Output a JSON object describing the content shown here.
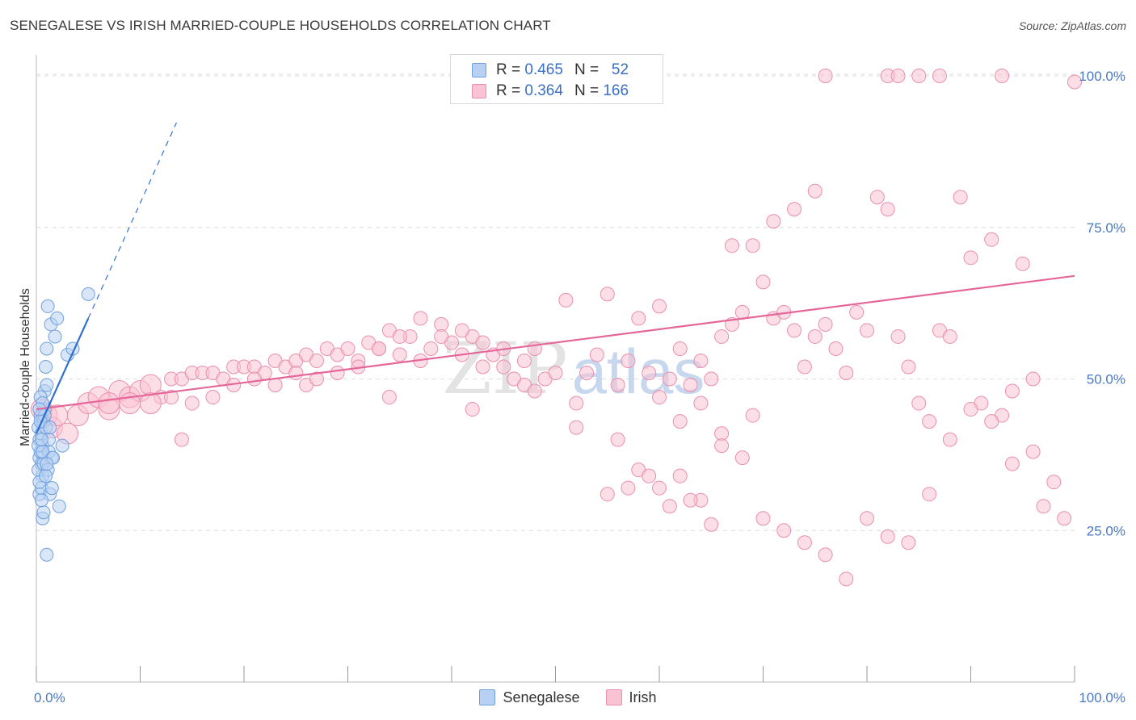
{
  "title": "SENEGALESE VS IRISH MARRIED-COUPLE HOUSEHOLDS CORRELATION CHART",
  "source": "Source: ZipAtlas.com",
  "watermark": {
    "zip": "ZIP",
    "atlas": "atlas"
  },
  "colors": {
    "senegalese_fill": "#b8d1f3",
    "senegalese_stroke": "#6f9fde",
    "senegalese_line": "#2f6fcf",
    "irish_fill": "#f9c3d4",
    "irish_stroke": "#ea8fae",
    "irish_line": "#e5679a",
    "tick_text": "#4a78c2",
    "grid": "#dcdcdc"
  },
  "legend_top": {
    "rows": [
      {
        "series": "Senegalese",
        "r_label": "R =",
        "r_value": "0.465",
        "n_label": "N =",
        "n_value": "52"
      },
      {
        "series": "Irish",
        "r_label": "R =",
        "r_value": "0.364",
        "n_label": "N =",
        "n_value": "166"
      }
    ]
  },
  "legend_bottom": [
    "Senegalese",
    "Irish"
  ],
  "chart_data": {
    "type": "scatter",
    "title": "SENEGALESE VS IRISH MARRIED-COUPLE HOUSEHOLDS CORRELATION CHART",
    "xlabel": "",
    "ylabel": "Married-couple Households",
    "xlim": [
      0,
      100
    ],
    "ylim": [
      0,
      102
    ],
    "x_tick_labels": [
      "0.0%",
      "100.0%"
    ],
    "y_ticks": [
      25,
      50,
      75,
      100
    ],
    "y_tick_labels": [
      "25.0%",
      "50.0%",
      "75.0%",
      "100.0%"
    ],
    "grid": "horizontal dashed",
    "legend": "top-center and bottom",
    "series": [
      {
        "name": "Senegalese",
        "r": 0.465,
        "n": 52,
        "trend": {
          "x0": 0,
          "y0": 41,
          "x1": 5,
          "y1": 60,
          "dashed_to_x": 13.5
        },
        "points": [
          [
            0.2,
            42
          ],
          [
            0.3,
            40
          ],
          [
            0.3,
            37
          ],
          [
            0.4,
            44
          ],
          [
            0.4,
            38
          ],
          [
            0.5,
            36
          ],
          [
            0.5,
            41
          ],
          [
            0.6,
            39
          ],
          [
            0.6,
            34
          ],
          [
            0.7,
            43
          ],
          [
            0.2,
            35
          ],
          [
            0.3,
            31
          ],
          [
            0.5,
            32
          ],
          [
            0.6,
            27
          ],
          [
            0.7,
            28
          ],
          [
            0.8,
            48
          ],
          [
            0.8,
            45
          ],
          [
            0.9,
            52
          ],
          [
            1.0,
            49
          ],
          [
            1.0,
            55
          ],
          [
            1.1,
            62
          ],
          [
            1.2,
            38
          ],
          [
            1.3,
            31
          ],
          [
            1.4,
            59
          ],
          [
            1.5,
            32
          ],
          [
            1.5,
            37
          ],
          [
            1.8,
            57
          ],
          [
            2.0,
            60
          ],
          [
            2.2,
            29
          ],
          [
            2.5,
            39
          ],
          [
            3.0,
            54
          ],
          [
            3.5,
            55
          ],
          [
            5.0,
            64
          ],
          [
            1.0,
            21
          ],
          [
            0.4,
            47
          ],
          [
            0.6,
            46
          ],
          [
            0.9,
            42
          ],
          [
            1.2,
            40
          ],
          [
            0.3,
            33
          ],
          [
            0.7,
            36
          ],
          [
            0.5,
            30
          ],
          [
            0.8,
            44
          ],
          [
            1.1,
            35
          ],
          [
            0.2,
            39
          ],
          [
            0.4,
            43
          ],
          [
            0.6,
            38
          ],
          [
            1.3,
            42
          ],
          [
            1.6,
            37
          ],
          [
            0.9,
            34
          ],
          [
            0.3,
            45
          ],
          [
            0.5,
            40
          ],
          [
            1.0,
            36
          ]
        ]
      },
      {
        "name": "Irish",
        "r": 0.364,
        "n": 166,
        "trend": {
          "x0": 0,
          "y0": 45,
          "x1": 100,
          "y1": 67
        },
        "points": [
          [
            0.5,
            45
          ],
          [
            1,
            44
          ],
          [
            1.5,
            42
          ],
          [
            2,
            44
          ],
          [
            3,
            41
          ],
          [
            4,
            44
          ],
          [
            5,
            46
          ],
          [
            6,
            47
          ],
          [
            7,
            45
          ],
          [
            8,
            48
          ],
          [
            9,
            47
          ],
          [
            10,
            48
          ],
          [
            11,
            49
          ],
          [
            12,
            47
          ],
          [
            13,
            50
          ],
          [
            14,
            50
          ],
          [
            15,
            51
          ],
          [
            16,
            51
          ],
          [
            17,
            51
          ],
          [
            18,
            50
          ],
          [
            19,
            52
          ],
          [
            20,
            52
          ],
          [
            21,
            52
          ],
          [
            22,
            51
          ],
          [
            23,
            53
          ],
          [
            24,
            52
          ],
          [
            25,
            53
          ],
          [
            26,
            54
          ],
          [
            27,
            53
          ],
          [
            28,
            55
          ],
          [
            29,
            54
          ],
          [
            30,
            55
          ],
          [
            31,
            53
          ],
          [
            32,
            56
          ],
          [
            33,
            55
          ],
          [
            34,
            58
          ],
          [
            35,
            54
          ],
          [
            36,
            57
          ],
          [
            37,
            53
          ],
          [
            38,
            55
          ],
          [
            39,
            59
          ],
          [
            40,
            56
          ],
          [
            41,
            54
          ],
          [
            42,
            57
          ],
          [
            43,
            52
          ],
          [
            44,
            54
          ],
          [
            45,
            55
          ],
          [
            46,
            50
          ],
          [
            47,
            49
          ],
          [
            48,
            55
          ],
          [
            49,
            50
          ],
          [
            50,
            51
          ],
          [
            51,
            63
          ],
          [
            52,
            46
          ],
          [
            53,
            51
          ],
          [
            54,
            54
          ],
          [
            55,
            64
          ],
          [
            56,
            49
          ],
          [
            57,
            53
          ],
          [
            58,
            60
          ],
          [
            59,
            51
          ],
          [
            60,
            62
          ],
          [
            61,
            50
          ],
          [
            62,
            55
          ],
          [
            63,
            49
          ],
          [
            64,
            53
          ],
          [
            65,
            50
          ],
          [
            66,
            57
          ],
          [
            67,
            59
          ],
          [
            68,
            61
          ],
          [
            69,
            44
          ],
          [
            70,
            66
          ],
          [
            71,
            60
          ],
          [
            72,
            61
          ],
          [
            73,
            58
          ],
          [
            74,
            52
          ],
          [
            75,
            57
          ],
          [
            76,
            59
          ],
          [
            77,
            55
          ],
          [
            78,
            51
          ],
          [
            79,
            61
          ],
          [
            80,
            58
          ],
          [
            81,
            80
          ],
          [
            82,
            78
          ],
          [
            83,
            57
          ],
          [
            84,
            52
          ],
          [
            85,
            46
          ],
          [
            86,
            43
          ],
          [
            87,
            58
          ],
          [
            88,
            57
          ],
          [
            89,
            80
          ],
          [
            90,
            70
          ],
          [
            91,
            46
          ],
          [
            92,
            73
          ],
          [
            93,
            44
          ],
          [
            94,
            36
          ],
          [
            95,
            69
          ],
          [
            96,
            38
          ],
          [
            97,
            29
          ],
          [
            98,
            33
          ],
          [
            99,
            27
          ],
          [
            100,
            99
          ],
          [
            14,
            40
          ],
          [
            26,
            49
          ],
          [
            34,
            47
          ],
          [
            42,
            45
          ],
          [
            48,
            48
          ],
          [
            52,
            42
          ],
          [
            56,
            40
          ],
          [
            58,
            35
          ],
          [
            60,
            32
          ],
          [
            62,
            34
          ],
          [
            64,
            30
          ],
          [
            66,
            41
          ],
          [
            68,
            37
          ],
          [
            70,
            27
          ],
          [
            72,
            25
          ],
          [
            74,
            23
          ],
          [
            76,
            21
          ],
          [
            78,
            17
          ],
          [
            80,
            27
          ],
          [
            82,
            24
          ],
          [
            84,
            23
          ],
          [
            86,
            31
          ],
          [
            88,
            40
          ],
          [
            90,
            45
          ],
          [
            92,
            43
          ],
          [
            94,
            48
          ],
          [
            96,
            50
          ],
          [
            60,
            47
          ],
          [
            62,
            43
          ],
          [
            64,
            46
          ],
          [
            66,
            39
          ],
          [
            55,
            31
          ],
          [
            57,
            32
          ],
          [
            59,
            34
          ],
          [
            61,
            29
          ],
          [
            63,
            30
          ],
          [
            65,
            26
          ],
          [
            67,
            72
          ],
          [
            69,
            72
          ],
          [
            71,
            76
          ],
          [
            73,
            78
          ],
          [
            75,
            81
          ],
          [
            76,
            100
          ],
          [
            82,
            100
          ],
          [
            83,
            100
          ],
          [
            85,
            100
          ],
          [
            87,
            100
          ],
          [
            93,
            100
          ],
          [
            45,
            52
          ],
          [
            47,
            53
          ],
          [
            43,
            56
          ],
          [
            41,
            58
          ],
          [
            39,
            57
          ],
          [
            37,
            60
          ],
          [
            35,
            57
          ],
          [
            33,
            55
          ],
          [
            31,
            52
          ],
          [
            29,
            51
          ],
          [
            27,
            50
          ],
          [
            25,
            51
          ],
          [
            23,
            49
          ],
          [
            21,
            50
          ],
          [
            19,
            49
          ],
          [
            17,
            47
          ],
          [
            15,
            46
          ],
          [
            13,
            47
          ],
          [
            11,
            46
          ],
          [
            9,
            46
          ],
          [
            7,
            46
          ]
        ]
      }
    ]
  }
}
